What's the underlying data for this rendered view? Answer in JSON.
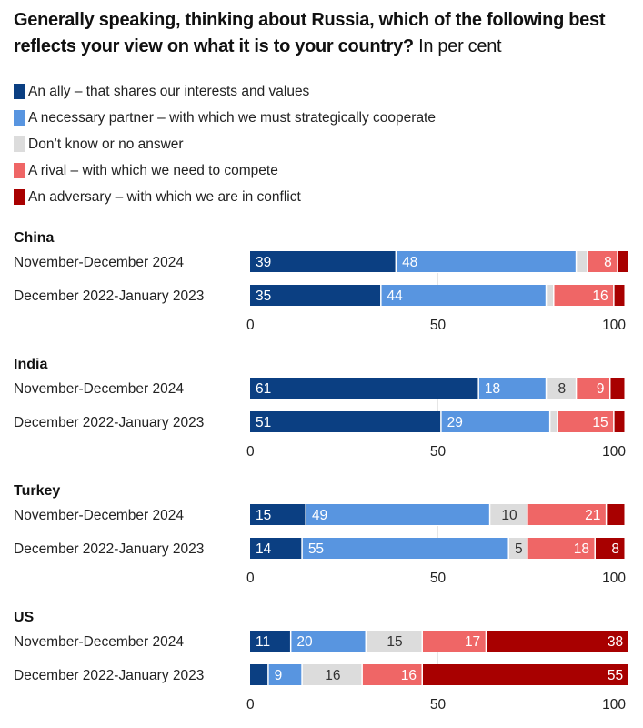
{
  "title": {
    "main": "Generally speaking, thinking about Russia, which of the following best reflects your view on what it is to your country?",
    "unit": " In per cent"
  },
  "colors": {
    "ally": "#0b3f82",
    "partner": "#5895e0",
    "dontknow": "#dcdcdc",
    "rival": "#ef6666",
    "adversary": "#a80000"
  },
  "chart_data": {
    "type": "bar",
    "orientation": "horizontal-stacked",
    "title": "Generally speaking, thinking about Russia, which of the following best reflects your view on what it is to your country? In per cent",
    "xlim": [
      0,
      100
    ],
    "xticks": [
      0,
      50,
      100
    ],
    "legend_position": "top-left",
    "legend": [
      {
        "key": "ally",
        "label": "An ally – that shares our interests and values"
      },
      {
        "key": "partner",
        "label": "A necessary partner – with which we must strategically cooperate"
      },
      {
        "key": "dontknow",
        "label": "Don’t know or no answer"
      },
      {
        "key": "rival",
        "label": "A rival – with which we need to compete"
      },
      {
        "key": "adversary",
        "label": "An adversary – with which we are in conflict"
      }
    ],
    "groups": [
      {
        "country": "China",
        "rows": [
          {
            "period": "November-December 2024",
            "values": [
              39,
              48,
              3,
              8,
              3
            ],
            "labels": [
              "39",
              "48",
              "",
              "8",
              ""
            ]
          },
          {
            "period": "December 2022-January 2023",
            "values": [
              35,
              44,
              2,
              16,
              3
            ],
            "labels": [
              "35",
              "44",
              "",
              "16",
              ""
            ]
          }
        ]
      },
      {
        "country": "India",
        "rows": [
          {
            "period": "November-December 2024",
            "values": [
              61,
              18,
              8,
              9,
              4
            ],
            "labels": [
              "61",
              "18",
              "8",
              "9",
              ""
            ]
          },
          {
            "period": "December 2022-January 2023",
            "values": [
              51,
              29,
              2,
              15,
              3
            ],
            "labels": [
              "51",
              "29",
              "",
              "15",
              ""
            ]
          }
        ]
      },
      {
        "country": "Turkey",
        "rows": [
          {
            "period": "November-December 2024",
            "values": [
              15,
              49,
              10,
              21,
              5
            ],
            "labels": [
              "15",
              "49",
              "10",
              "21",
              ""
            ]
          },
          {
            "period": "December 2022-January 2023",
            "values": [
              14,
              55,
              5,
              18,
              8
            ],
            "labels": [
              "14",
              "55",
              "5",
              "18",
              "8"
            ]
          }
        ]
      },
      {
        "country": "US",
        "rows": [
          {
            "period": "November-December 2024",
            "values": [
              11,
              20,
              15,
              17,
              38
            ],
            "labels": [
              "11",
              "20",
              "15",
              "17",
              "38"
            ]
          },
          {
            "period": "December 2022-January 2023",
            "values": [
              5,
              9,
              16,
              16,
              55
            ],
            "labels": [
              "",
              "9",
              "16",
              "16",
              "55"
            ]
          }
        ]
      }
    ]
  }
}
